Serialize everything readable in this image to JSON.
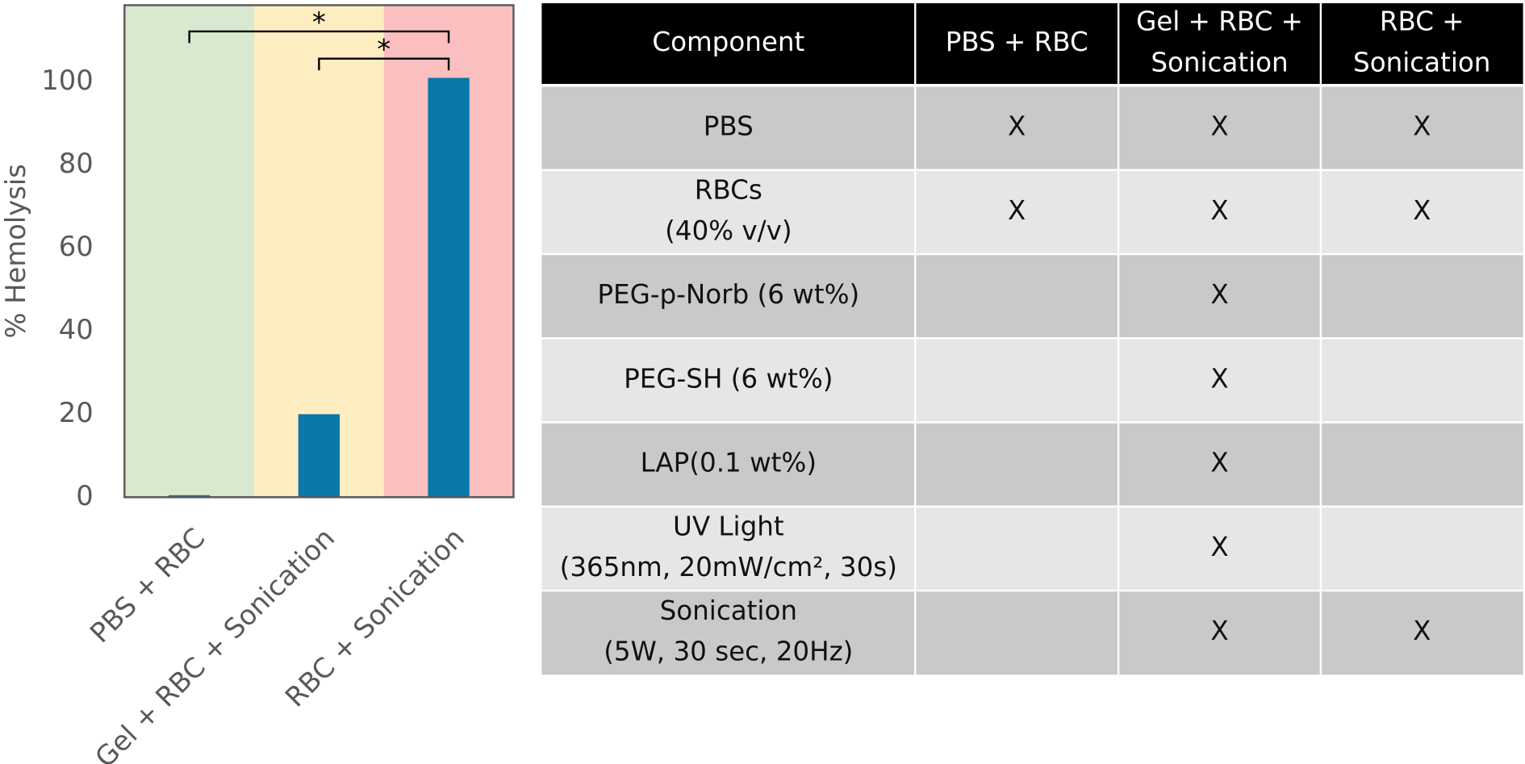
{
  "chart_data": {
    "type": "bar",
    "y_label": "% Hemolysis",
    "categories": [
      "PBS + RBC",
      "Gel + RBC + Sonication",
      "RBC + Sonication"
    ],
    "values": [
      0.5,
      20,
      101
    ],
    "color": "#0a78a8",
    "band_colors": [
      "#d9e9d0",
      "#fdedc0",
      "#fcbfbf"
    ],
    "annotations": [
      "*",
      "*"
    ],
    "ylim": [
      0,
      118.5
    ],
    "yticks": [
      0,
      20,
      40,
      60,
      80,
      100
    ],
    "grid": false
  },
  "table": {
    "header": [
      [
        "Component"
      ],
      [
        "PBS + RBC"
      ],
      [
        "Gel + RBC +",
        "Sonication"
      ],
      [
        "RBC +",
        "Sonication"
      ]
    ],
    "rows": [
      [
        [
          "PBS"
        ],
        [
          "X"
        ],
        [
          "X"
        ],
        [
          "X"
        ]
      ],
      [
        [
          "RBCs",
          "(40% v/v)"
        ],
        [
          "X"
        ],
        [
          "X"
        ],
        [
          "X"
        ]
      ],
      [
        [
          "PEG-p-Norb (6 wt%)"
        ],
        null,
        [
          "X"
        ],
        null
      ],
      [
        [
          "PEG-SH (6 wt%)"
        ],
        null,
        [
          "X"
        ],
        null
      ],
      [
        [
          "LAP(0.1 wt%)"
        ],
        null,
        [
          "X"
        ],
        null
      ],
      [
        [
          "UV Light",
          "(365nm, 20mW/cm², 30s)"
        ],
        null,
        [
          "X"
        ],
        null
      ],
      [
        [
          "Sonication",
          "(5W, 30 sec, 20Hz)"
        ],
        null,
        [
          "X"
        ],
        [
          "X"
        ]
      ]
    ]
  }
}
